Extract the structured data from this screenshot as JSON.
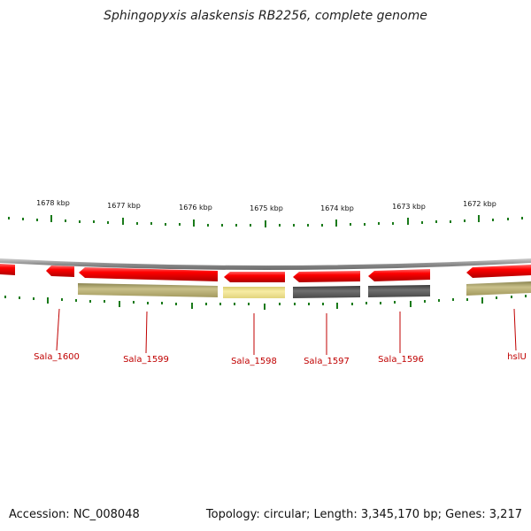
{
  "title": "Sphingopyxis alaskensis RB2256, complete genome",
  "accession": "Accession: NC_008048",
  "summary": "Topology: circular; Length: 3,345,170 bp; Genes: 3,217",
  "colors": {
    "gene_red": "#ff0000",
    "label_red": "#c00000",
    "tick_green": "#1a7a1a",
    "backbone": "#909090",
    "olive": "#b8b078",
    "pale_yellow": "#efe49a",
    "dark_gray": "#555555"
  },
  "kbp_labels": [
    "1678 kbp",
    "1677 kbp",
    "1676 kbp",
    "1675 kbp",
    "1674 kbp",
    "1673 kbp",
    "1672 kbp"
  ],
  "gene_labels": [
    "Sala_1600",
    "Sala_1599",
    "Sala_1598",
    "Sala_1597",
    "Sala_1596",
    "hslU"
  ]
}
